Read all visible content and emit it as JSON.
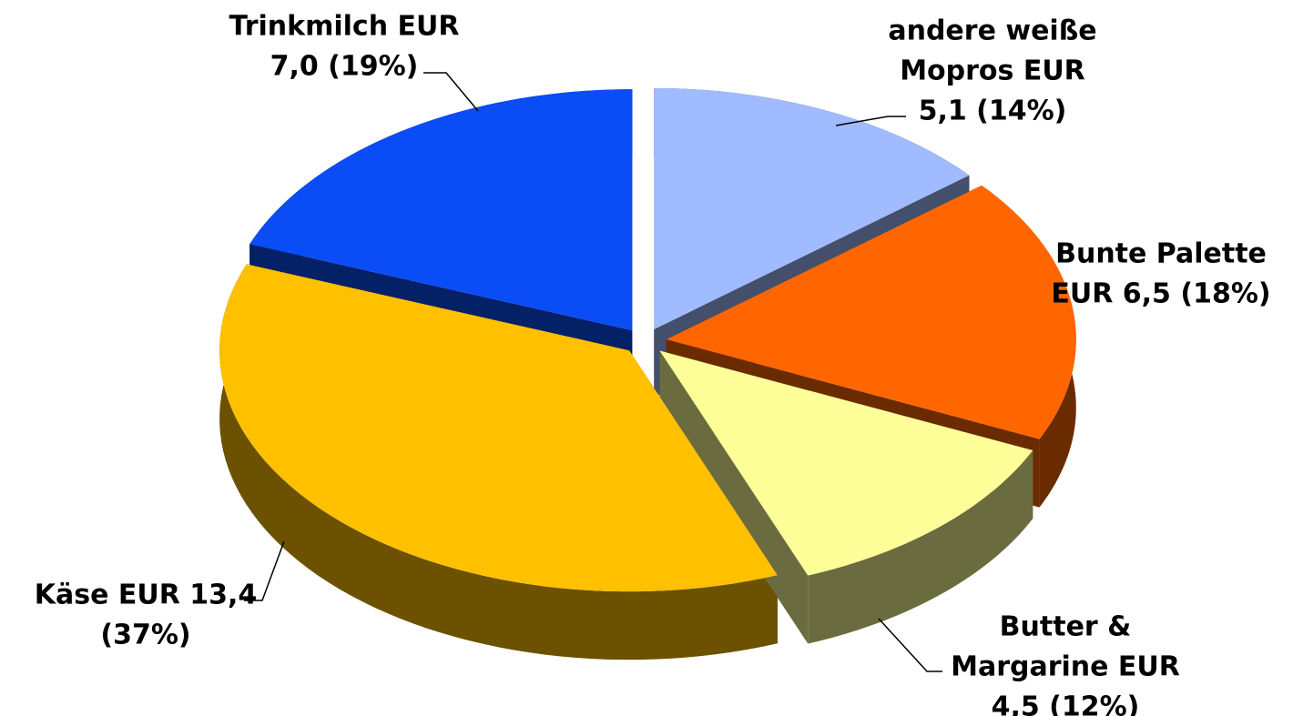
{
  "chart_data": {
    "type": "pie",
    "values": [
      7.0,
      5.1,
      6.5,
      4.5,
      13.4
    ],
    "value_labels": [
      [
        "Trinkmilch EUR",
        "7,0 (19%)"
      ],
      [
        "andere weiße",
        "Mopros EUR",
        "5,1 (14%)"
      ],
      [
        "Bunte Palette",
        "EUR 6,5 (18%)"
      ],
      [
        "Butter &",
        "Margarine EUR",
        "4,5 (12%)"
      ],
      [
        "Käse EUR 13,4",
        "(37%)"
      ]
    ],
    "colors": [
      "#0a4cf5",
      "#a0bbff",
      "#ff6600",
      "#ffff99",
      "#ffc000"
    ]
  }
}
